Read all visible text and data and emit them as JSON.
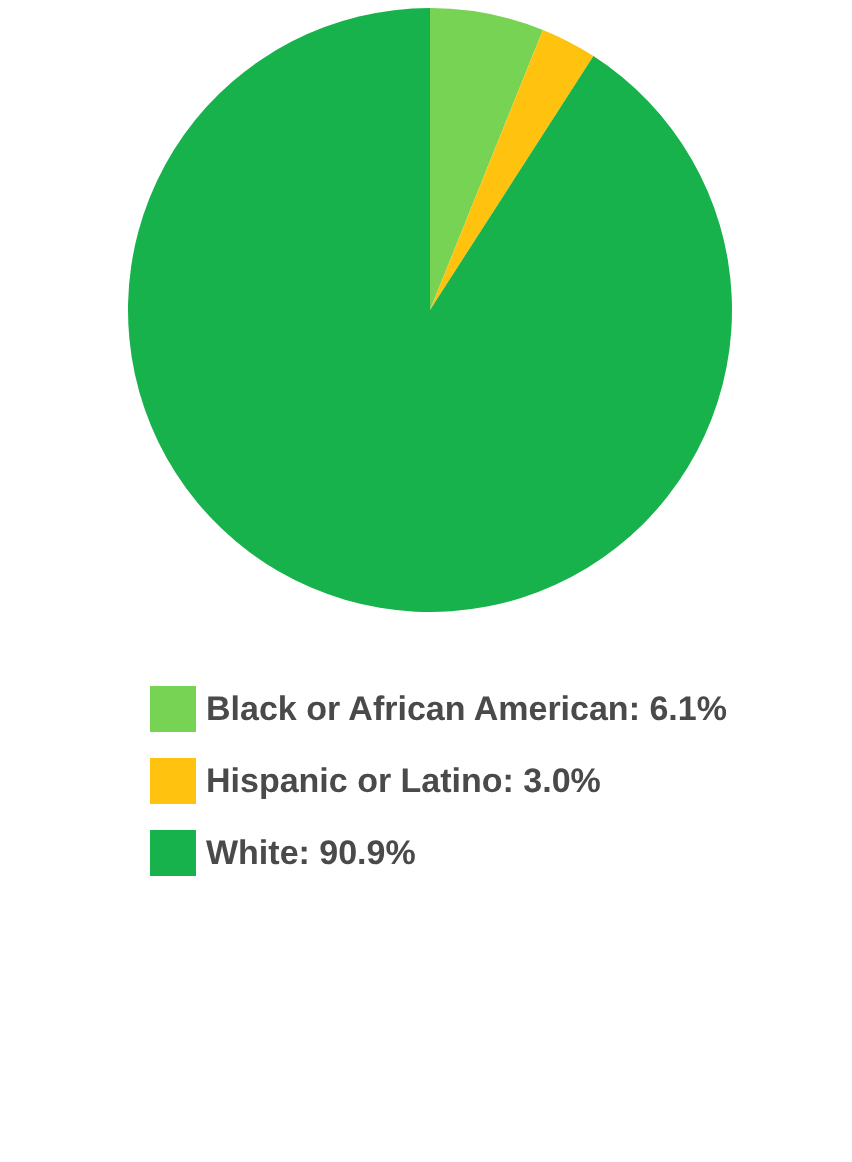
{
  "chart_data": {
    "type": "pie",
    "categories": [
      "Black or African American: 6.1%",
      "Hispanic or Latino: 3.0%",
      "White: 90.9%"
    ],
    "values": [
      6.1,
      3.0,
      90.9
    ],
    "colors": [
      "#77d353",
      "#ffc20e",
      "#17b24b"
    ],
    "legend": "bottom"
  }
}
